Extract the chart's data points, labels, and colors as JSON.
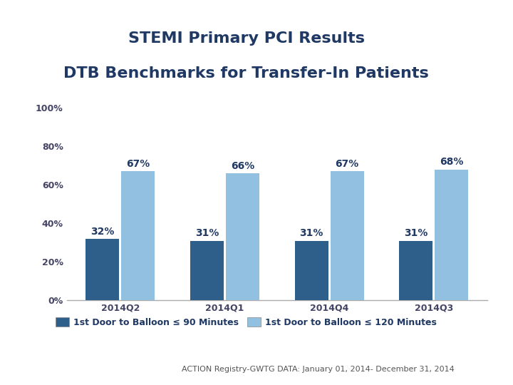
{
  "title_line1": "STEMI Primary PCI Results",
  "title_line2": "DTB Benchmarks for Transfer-In Patients",
  "title_color": "#1F3864",
  "categories": [
    "2014Q2",
    "2014Q1",
    "2014Q4",
    "2014Q3"
  ],
  "dark_values": [
    32,
    31,
    31,
    31
  ],
  "light_values": [
    67,
    66,
    67,
    68
  ],
  "dark_color": "#2E5F8A",
  "light_color": "#92C0E0",
  "bar_width": 0.32,
  "ylim": [
    0,
    100
  ],
  "yticks": [
    0,
    20,
    40,
    60,
    80,
    100
  ],
  "ytick_labels": [
    "0%",
    "20%",
    "40%",
    "60%",
    "80%",
    "100%"
  ],
  "legend1": "1st Door to Balloon ≤ 90 Minutes",
  "legend2": "1st Door to Balloon ≤ 120 Minutes",
  "footnote": "ACTION Registry-GWTG DATA: January 01, 2014- December 31, 2014",
  "bg_color": "#FFFFFF",
  "axis_label_color": "#555577",
  "tick_label_color": "#444466",
  "bar_label_color_dark": "#1F3864",
  "bar_label_color_light": "#1F3864",
  "title_fontsize": 16,
  "bar_label_fontsize": 10,
  "tick_fontsize": 9,
  "legend_fontsize": 9,
  "footnote_fontsize": 8
}
